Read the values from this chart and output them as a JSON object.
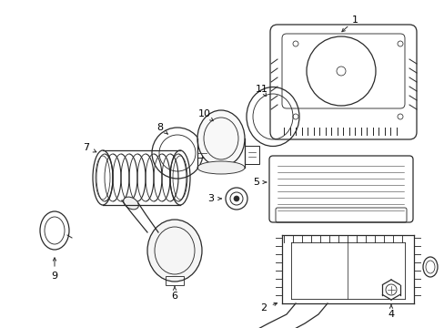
{
  "background_color": "#ffffff",
  "line_color": "#2a2a2a",
  "label_color": "#000000",
  "fig_width": 4.89,
  "fig_height": 3.6,
  "dpi": 100
}
